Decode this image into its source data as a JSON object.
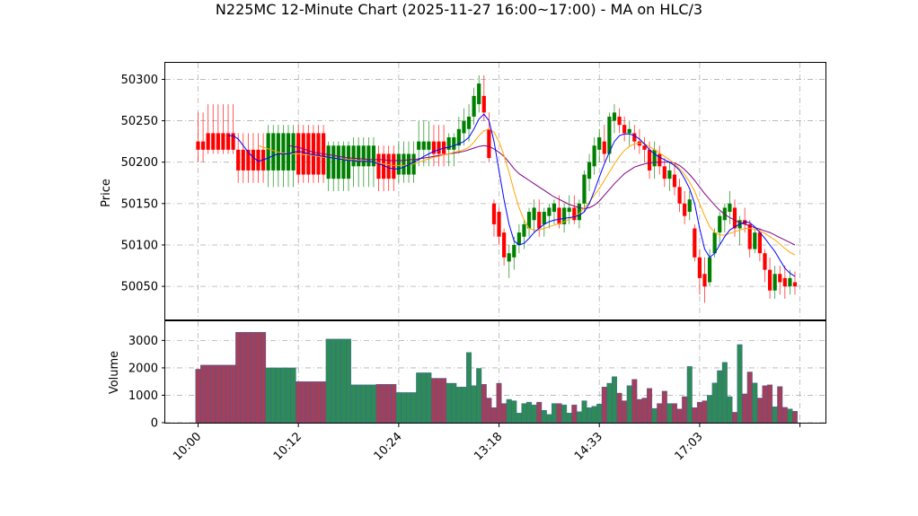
{
  "chart_data": {
    "type": "candlestick",
    "title": "N225MC 12-Minute Chart (2025-11-27 16:00~17:00) - MA on HLC/3",
    "price_panel": {
      "ylabel": "Price",
      "yticks": [
        50050,
        50100,
        50150,
        50200,
        50250,
        50300
      ],
      "ylim": [
        50010,
        50320
      ],
      "grid": true
    },
    "volume_panel": {
      "ylabel": "Volume",
      "yticks": [
        0,
        1000,
        2000,
        3000
      ],
      "ylim": [
        0,
        3700
      ],
      "grid": true
    },
    "xticks": [
      {
        "index": 0,
        "label": "10:00"
      },
      {
        "index": 20,
        "label": "10:12"
      },
      {
        "index": 40,
        "label": "10:24"
      },
      {
        "index": 60,
        "label": "13:18"
      },
      {
        "index": 80,
        "label": "14:33"
      },
      {
        "index": 100,
        "label": "17:03"
      },
      {
        "index": 120,
        "label": ""
      }
    ],
    "colors": {
      "up": "#008000",
      "down": "#ff0000",
      "ma_fast": "#0000ff",
      "ma_mid": "#ffa500",
      "ma_slow": "#800080",
      "grid": "#b0b0b0",
      "volume_up": "#2e8b57",
      "volume_down": "#a0405a"
    },
    "candles": [
      [
        50225,
        50260,
        50200,
        50215
      ],
      [
        50225,
        50260,
        50200,
        50215
      ],
      [
        50235,
        50270,
        50210,
        50215
      ],
      [
        50235,
        50270,
        50210,
        50215
      ],
      [
        50235,
        50270,
        50210,
        50215
      ],
      [
        50235,
        50270,
        50210,
        50215
      ],
      [
        50235,
        50270,
        50210,
        50215
      ],
      [
        50235,
        50270,
        50210,
        50215
      ],
      [
        50215,
        50235,
        50175,
        50190
      ],
      [
        50215,
        50235,
        50175,
        50190
      ],
      [
        50215,
        50235,
        50175,
        50190
      ],
      [
        50215,
        50235,
        50175,
        50190
      ],
      [
        50215,
        50235,
        50175,
        50190
      ],
      [
        50215,
        50235,
        50175,
        50190
      ],
      [
        50190,
        50245,
        50170,
        50235
      ],
      [
        50190,
        50245,
        50170,
        50235
      ],
      [
        50190,
        50245,
        50170,
        50235
      ],
      [
        50190,
        50245,
        50170,
        50235
      ],
      [
        50190,
        50245,
        50170,
        50235
      ],
      [
        50190,
        50245,
        50170,
        50235
      ],
      [
        50235,
        50245,
        50175,
        50185
      ],
      [
        50235,
        50245,
        50175,
        50185
      ],
      [
        50235,
        50245,
        50175,
        50185
      ],
      [
        50235,
        50245,
        50175,
        50185
      ],
      [
        50235,
        50245,
        50175,
        50185
      ],
      [
        50235,
        50245,
        50175,
        50185
      ],
      [
        50180,
        50225,
        50165,
        50220
      ],
      [
        50180,
        50225,
        50165,
        50220
      ],
      [
        50180,
        50225,
        50165,
        50220
      ],
      [
        50180,
        50225,
        50165,
        50220
      ],
      [
        50180,
        50225,
        50165,
        50220
      ],
      [
        50195,
        50230,
        50170,
        50220
      ],
      [
        50195,
        50230,
        50170,
        50220
      ],
      [
        50195,
        50230,
        50170,
        50220
      ],
      [
        50195,
        50230,
        50170,
        50220
      ],
      [
        50195,
        50230,
        50170,
        50220
      ],
      [
        50210,
        50220,
        50165,
        50180
      ],
      [
        50210,
        50220,
        50165,
        50180
      ],
      [
        50210,
        50220,
        50165,
        50180
      ],
      [
        50210,
        50220,
        50165,
        50180
      ],
      [
        50185,
        50225,
        50175,
        50210
      ],
      [
        50185,
        50225,
        50175,
        50210
      ],
      [
        50185,
        50225,
        50175,
        50210
      ],
      [
        50185,
        50225,
        50175,
        50210
      ],
      [
        50215,
        50250,
        50195,
        50225
      ],
      [
        50215,
        50250,
        50195,
        50225
      ],
      [
        50215,
        50250,
        50195,
        50225
      ],
      [
        50225,
        50245,
        50195,
        50210
      ],
      [
        50225,
        50245,
        50195,
        50210
      ],
      [
        50225,
        50245,
        50195,
        50210
      ],
      [
        50215,
        50235,
        50195,
        50230
      ],
      [
        50215,
        50235,
        50195,
        50230
      ],
      [
        50220,
        50255,
        50210,
        50240
      ],
      [
        50235,
        50265,
        50220,
        50250
      ],
      [
        50240,
        50270,
        50225,
        50255
      ],
      [
        50255,
        50290,
        50245,
        50280
      ],
      [
        50270,
        50305,
        50260,
        50295
      ],
      [
        50280,
        50305,
        50250,
        50260
      ],
      [
        50240,
        50260,
        50200,
        50205
      ],
      [
        50150,
        50155,
        50110,
        50125
      ],
      [
        50140,
        50145,
        50100,
        50110
      ],
      [
        50115,
        50120,
        50075,
        50085
      ],
      [
        50080,
        50100,
        50060,
        50090
      ],
      [
        50085,
        50110,
        50070,
        50100
      ],
      [
        50100,
        50125,
        50090,
        50115
      ],
      [
        50110,
        50130,
        50095,
        50125
      ],
      [
        50120,
        50145,
        50110,
        50140
      ],
      [
        50130,
        50155,
        50115,
        50145
      ],
      [
        50140,
        50155,
        50110,
        50120
      ],
      [
        50125,
        50145,
        50110,
        50140
      ],
      [
        50135,
        50150,
        50120,
        50145
      ],
      [
        50140,
        50155,
        50125,
        50150
      ],
      [
        50145,
        50160,
        50120,
        50125
      ],
      [
        50125,
        50150,
        50115,
        50145
      ],
      [
        50140,
        50160,
        50125,
        50145
      ],
      [
        50145,
        50160,
        50125,
        50130
      ],
      [
        50130,
        50155,
        50120,
        50150
      ],
      [
        50150,
        50190,
        50140,
        50185
      ],
      [
        50180,
        50210,
        50165,
        50200
      ],
      [
        50195,
        50230,
        50185,
        50220
      ],
      [
        50215,
        50240,
        50200,
        50230
      ],
      [
        50225,
        50245,
        50200,
        50210
      ],
      [
        50210,
        50260,
        50200,
        50255
      ],
      [
        50250,
        50270,
        50235,
        50260
      ],
      [
        50255,
        50265,
        50235,
        50245
      ],
      [
        50245,
        50255,
        50225,
        50235
      ],
      [
        50235,
        50250,
        50220,
        50240
      ],
      [
        50235,
        50245,
        50215,
        50225
      ],
      [
        50225,
        50240,
        50210,
        50220
      ],
      [
        50220,
        50230,
        50200,
        50215
      ],
      [
        50215,
        50225,
        50180,
        50190
      ],
      [
        50195,
        50225,
        50180,
        50215
      ],
      [
        50210,
        50220,
        50185,
        50195
      ],
      [
        50195,
        50205,
        50170,
        50180
      ],
      [
        50180,
        50200,
        50165,
        50190
      ],
      [
        50185,
        50200,
        50160,
        50170
      ],
      [
        50170,
        50180,
        50140,
        50150
      ],
      [
        50150,
        50165,
        50125,
        50135
      ],
      [
        50140,
        50165,
        50130,
        50155
      ],
      [
        50120,
        50125,
        50080,
        50085
      ],
      [
        50085,
        50095,
        50040,
        50060
      ],
      [
        50065,
        50085,
        50030,
        50050
      ],
      [
        50055,
        50095,
        50050,
        50085
      ],
      [
        50090,
        50120,
        50085,
        50115
      ],
      [
        50115,
        50140,
        50100,
        50135
      ],
      [
        50130,
        50150,
        50115,
        50145
      ],
      [
        50140,
        50165,
        50125,
        50150
      ],
      [
        50145,
        50155,
        50110,
        50120
      ],
      [
        50120,
        50135,
        50100,
        50130
      ],
      [
        50130,
        50145,
        50115,
        50125
      ],
      [
        50125,
        50130,
        50085,
        50095
      ],
      [
        50095,
        50120,
        50090,
        50115
      ],
      [
        50115,
        50120,
        50080,
        50090
      ],
      [
        50090,
        50095,
        50055,
        50070
      ],
      [
        50070,
        50085,
        50035,
        50045
      ],
      [
        50045,
        50075,
        50035,
        50065
      ],
      [
        50065,
        50075,
        50040,
        50055
      ],
      [
        50060,
        50075,
        50035,
        50050
      ],
      [
        50050,
        50070,
        50040,
        50060
      ],
      [
        50055,
        50068,
        50040,
        50050
      ]
    ],
    "volume": [
      1950,
      2100,
      2100,
      2100,
      2100,
      2100,
      2100,
      2100,
      3300,
      3300,
      3300,
      3300,
      3300,
      3300,
      2000,
      2000,
      2000,
      2000,
      2000,
      2000,
      1500,
      1500,
      1500,
      1500,
      1500,
      1500,
      3050,
      3050,
      3050,
      3050,
      3050,
      1380,
      1380,
      1380,
      1380,
      1380,
      1400,
      1400,
      1400,
      1400,
      1100,
      1100,
      1100,
      1100,
      1820,
      1820,
      1820,
      1620,
      1620,
      1620,
      1440,
      1440,
      1300,
      1300,
      2560,
      1350,
      1980,
      1400,
      900,
      550,
      1440,
      700,
      850,
      800,
      350,
      700,
      750,
      650,
      750,
      450,
      300,
      700,
      700,
      650,
      350,
      650,
      400,
      800,
      550,
      600,
      680,
      1300,
      1440,
      1680,
      1080,
      800,
      1350,
      1580,
      850,
      900,
      1250,
      520,
      700,
      1150,
      700,
      700,
      500,
      950,
      2050,
      550,
      750,
      800,
      1000,
      1450,
      1900,
      2200,
      950,
      380,
      2850,
      1050,
      1850,
      1450,
      900,
      1350,
      1380,
      580,
      1320,
      560,
      500,
      420
    ],
    "ma_fast": [
      null,
      null,
      null,
      null,
      null,
      null,
      50232,
      50232,
      50228,
      50220,
      50212,
      50206,
      50201,
      50203,
      50205,
      50208,
      50210,
      50210,
      50210,
      50212,
      50213,
      50212,
      50210,
      50209,
      50208,
      50207,
      50206,
      50205,
      50204,
      50203,
      50202,
      50202,
      50201,
      50201,
      50201,
      50200,
      50198,
      50196,
      50193,
      50192,
      50192,
      50194,
      50197,
      50200,
      50203,
      50207,
      50210,
      50213,
      50215,
      50217,
      50218,
      50220,
      50222,
      50225,
      50230,
      50240,
      50252,
      50258,
      50250,
      50225,
      50190,
      50155,
      50125,
      50105,
      50100,
      50102,
      50108,
      50115,
      50120,
      50125,
      50128,
      50130,
      50131,
      50132,
      50133,
      50134,
      50136,
      50140,
      50150,
      50165,
      50182,
      50198,
      50212,
      50225,
      50232,
      50234,
      50234,
      50232,
      50228,
      50222,
      50215,
      50210,
      50206,
      50203,
      50200,
      50196,
      50190,
      50180,
      50168,
      50150,
      50120,
      50095,
      50085,
      50090,
      50100,
      50110,
      50118,
      50122,
      50125,
      50128,
      50127,
      50122,
      50115,
      50108,
      50100,
      50092,
      50082,
      50072,
      50066,
      50062
    ],
    "ma_mid": [
      null,
      null,
      null,
      null,
      null,
      null,
      null,
      null,
      null,
      null,
      null,
      null,
      50220,
      50218,
      50216,
      50214,
      50212,
      50211,
      50210,
      50210,
      50210,
      50209,
      50209,
      50208,
      50207,
      50206,
      50206,
      50205,
      50204,
      50204,
      50203,
      50203,
      50202,
      50202,
      50201,
      50200,
      50199,
      50198,
      50197,
      50196,
      50196,
      50196,
      50197,
      50198,
      50200,
      50202,
      50204,
      50206,
      50207,
      50209,
      50210,
      50212,
      50213,
      50215,
      50218,
      50224,
      50232,
      50238,
      50240,
      50236,
      50225,
      50208,
      50188,
      50165,
      50145,
      50130,
      50120,
      50118,
      50118,
      50120,
      50122,
      50124,
      50126,
      50128,
      50131,
      50134,
      50138,
      50145,
      50152,
      50160,
      50168,
      50178,
      50188,
      50198,
      50207,
      50214,
      50219,
      50222,
      50223,
      50222,
      50219,
      50215,
      50211,
      50207,
      50203,
      50198,
      50192,
      50185,
      50176,
      50165,
      50150,
      50135,
      50122,
      50115,
      50112,
      50112,
      50114,
      50116,
      50118,
      50120,
      50120,
      50119,
      50117,
      50114,
      50110,
      50106,
      50101,
      50096,
      50091,
      50088
    ],
    "ma_slow": [
      null,
      null,
      null,
      null,
      null,
      null,
      null,
      null,
      null,
      null,
      null,
      null,
      null,
      null,
      null,
      null,
      null,
      null,
      50220,
      50219,
      50218,
      50216,
      50214,
      50212,
      50211,
      50210,
      50209,
      50208,
      50207,
      50206,
      50205,
      50205,
      50204,
      50204,
      50203,
      50203,
      50203,
      50203,
      50202,
      50202,
      50202,
      50202,
      50203,
      50203,
      50204,
      50205,
      50206,
      50207,
      50208,
      50209,
      50210,
      50211,
      50212,
      50213,
      50215,
      50217,
      50219,
      50220,
      50219,
      50216,
      50212,
      50207,
      50200,
      50192,
      50186,
      50182,
      50178,
      50174,
      50170,
      50166,
      50162,
      50158,
      50155,
      50152,
      50149,
      50147,
      50145,
      50144,
      50145,
      50148,
      50153,
      50160,
      50167,
      50174,
      50180,
      50186,
      50190,
      50194,
      50196,
      50198,
      50199,
      50200,
      50200,
      50200,
      50200,
      50199,
      50196,
      50191,
      50185,
      50178,
      50170,
      50162,
      50155,
      50148,
      50142,
      50137,
      50133,
      50130,
      50127,
      50125,
      50123,
      50121,
      50119,
      50117,
      50115,
      50112,
      50109,
      50106,
      50103,
      50100
    ]
  }
}
